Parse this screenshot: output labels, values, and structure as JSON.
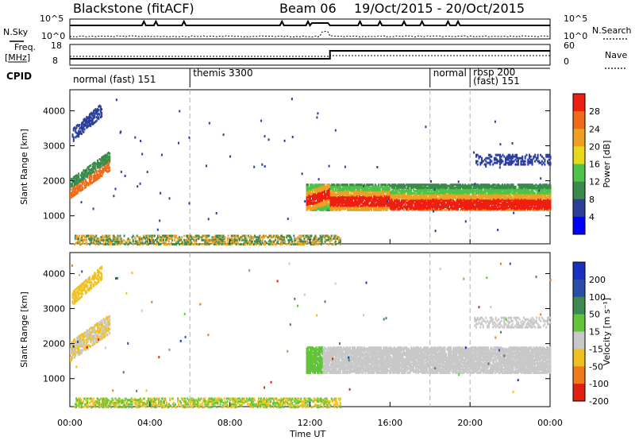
{
  "header": {
    "station": "Blackstone (fitACF)",
    "beam": "Beam 06",
    "date_range": "19/Oct/2015 - 20/Oct/2015"
  },
  "small_panels": {
    "nsky_label": "N.Sky",
    "nsearch_label": "N.Search",
    "left_ticks_nsky": [
      "10^5",
      "10^0"
    ],
    "right_ticks_nsky": [
      "10^5",
      "10^0"
    ],
    "freq_label_top": "Freq.",
    "freq_label_unit": "[MHz]",
    "freq_ticks": [
      "18",
      "8"
    ],
    "nave_label": "Nave",
    "nave_ticks": [
      "60",
      "0"
    ],
    "cpid_label": "CPID"
  },
  "cpid_segments": [
    {
      "start": 0,
      "end": 6,
      "label": "normal (fast) 151"
    },
    {
      "start": 6,
      "end": 18,
      "label": "themis 3300"
    },
    {
      "start": 18,
      "end": 20,
      "label": "normal"
    },
    {
      "start": 20,
      "end": 24,
      "label": "rbsp 200"
    },
    {
      "start": 20,
      "end": 24,
      "label": "(fast) 151"
    }
  ],
  "chart_data": [
    {
      "type": "heatmap",
      "panel": "power",
      "ylabel": "Slant Range [km]",
      "xlabel": "Time UT",
      "x_ticks": [
        "00:00",
        "04:00",
        "08:00",
        "12:00",
        "16:00",
        "20:00",
        "00:00"
      ],
      "x_range_hours": [
        0,
        24
      ],
      "y_ticks": [
        1000,
        2000,
        3000,
        4000
      ],
      "ylim": [
        200,
        4600
      ],
      "colorbar": {
        "label": "Power [dB]",
        "ticks": [
          "4",
          "8",
          "12",
          "16",
          "20",
          "24",
          "28"
        ],
        "colors": [
          "#0000ff",
          "#2b3f9a",
          "#3a8a4a",
          "#4fc24a",
          "#e9d81a",
          "#f0a020",
          "#f06a1a",
          "#ee1e10"
        ],
        "range": [
          0,
          30
        ]
      },
      "regions": [
        {
          "name": "early arc",
          "t": [
            0.0,
            2.0
          ],
          "range_km": [
            1500,
            2800
          ]
        },
        {
          "name": "high arc",
          "t": [
            0.1,
            1.6
          ],
          "range_km": [
            3000,
            4300
          ]
        },
        {
          "name": "main band",
          "t": [
            11.8,
            24.0
          ],
          "range_km": [
            1200,
            1900
          ]
        },
        {
          "name": "upper band",
          "t": [
            20.2,
            24.0
          ],
          "range_km": [
            2400,
            2900
          ]
        },
        {
          "name": "ground scatter",
          "t": [
            0.2,
            13.5
          ],
          "range_km": [
            200,
            500
          ]
        }
      ]
    },
    {
      "type": "heatmap",
      "panel": "velocity",
      "ylabel": "Slant Range [km]",
      "xlabel": "Time UT",
      "x_ticks": [
        "00:00",
        "04:00",
        "08:00",
        "12:00",
        "16:00",
        "20:00",
        "00:00"
      ],
      "x_range_hours": [
        0,
        24
      ],
      "y_ticks": [
        1000,
        2000,
        3000,
        4000
      ],
      "ylim": [
        200,
        4600
      ],
      "colorbar": {
        "label": "Velocity [m s⁻¹]",
        "ticks": [
          "200",
          "100",
          "50",
          "15",
          "-15",
          "-50",
          "-100",
          "-200"
        ],
        "colors": [
          "#1a2fc0",
          "#2a4fa8",
          "#3c8a52",
          "#62c43a",
          "#c8c8c8",
          "#f0c020",
          "#f07a1a",
          "#e02010"
        ]
      },
      "regions": [
        {
          "name": "early arc",
          "t": [
            0.0,
            2.0
          ],
          "range_km": [
            1500,
            2800
          ]
        },
        {
          "name": "high arc",
          "t": [
            0.1,
            1.6
          ],
          "range_km": [
            3000,
            4300
          ]
        },
        {
          "name": "main band",
          "t": [
            11.8,
            24.0
          ],
          "range_km": [
            1200,
            1900
          ]
        },
        {
          "name": "upper band",
          "t": [
            20.2,
            24.0
          ],
          "range_km": [
            2400,
            2900
          ]
        },
        {
          "name": "ground scatter",
          "t": [
            0.2,
            13.5
          ],
          "range_km": [
            200,
            500
          ]
        }
      ]
    }
  ],
  "colors": {
    "dashed_line": "#b0b0b0"
  }
}
